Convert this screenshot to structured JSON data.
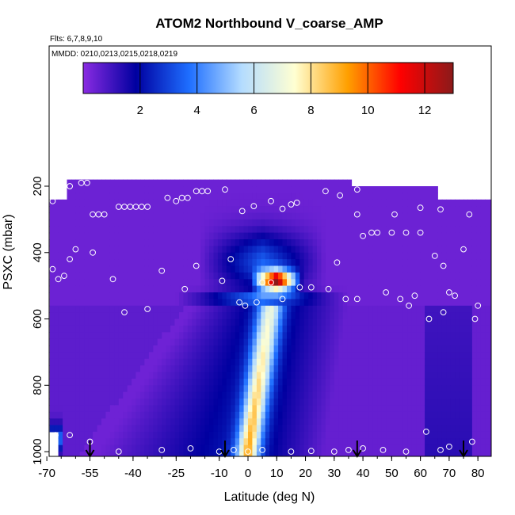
{
  "chart_data": {
    "type": "heatmap",
    "title": "ATOM2 Northbound V_coarse_AMP",
    "flights_label": "Flts: 6,7,8,9,10",
    "dates_label": "MMDD: 0210,0213,0215,0218,0219",
    "xlabel": "Latitude (deg N)",
    "ylabel": "PSXC (mbar)",
    "xlim": [
      -70,
      85
    ],
    "ylim": [
      1020,
      0
    ],
    "x_ticks": [
      -70,
      -55,
      -40,
      -25,
      -10,
      0,
      10,
      20,
      30,
      40,
      50,
      60,
      70,
      80
    ],
    "x_tick_labels": [
      "-70",
      "-55",
      "-40",
      "-25",
      "-10",
      "0",
      "10",
      "20",
      "30",
      "40",
      "50",
      "60",
      "70",
      "80"
    ],
    "y_ticks": [
      200,
      400,
      600,
      800,
      1000
    ],
    "y_tick_labels": [
      "200",
      "400",
      "600",
      "800",
      "1000"
    ],
    "colorbar": {
      "range": [
        0,
        13
      ],
      "ticks": [
        2,
        4,
        6,
        8,
        10,
        12
      ],
      "tick_labels": [
        "2",
        "4",
        "6",
        "8",
        "10",
        "12"
      ],
      "colors": [
        "#8a2be2",
        "#0000a0",
        "#1e6eff",
        "#b4dcff",
        "#ffffd2",
        "#ffa000",
        "#ff0000",
        "#8b1a1a"
      ]
    },
    "arrows_lat": [
      -55,
      -8,
      38,
      75
    ],
    "circles": [
      [
        -68,
        245
      ],
      [
        -65,
        220
      ],
      [
        -62,
        200
      ],
      [
        -58,
        190
      ],
      [
        -56,
        190
      ],
      [
        -54,
        285
      ],
      [
        -52,
        285
      ],
      [
        -50,
        285
      ],
      [
        -45,
        262
      ],
      [
        -43,
        262
      ],
      [
        -41,
        262
      ],
      [
        -39,
        262
      ],
      [
        -37,
        262
      ],
      [
        -35,
        262
      ],
      [
        -28,
        235
      ],
      [
        -25,
        245
      ],
      [
        -23,
        235
      ],
      [
        -21,
        235
      ],
      [
        -18,
        215
      ],
      [
        -16,
        215
      ],
      [
        -14,
        215
      ],
      [
        -8,
        210
      ],
      [
        -2,
        275
      ],
      [
        2,
        260
      ],
      [
        8,
        245
      ],
      [
        12,
        268
      ],
      [
        15,
        255
      ],
      [
        17,
        250
      ],
      [
        27,
        215
      ],
      [
        32,
        228
      ],
      [
        38,
        210
      ],
      [
        -68,
        450
      ],
      [
        -66,
        480
      ],
      [
        -64,
        470
      ],
      [
        -62,
        420
      ],
      [
        -60,
        390
      ],
      [
        -54,
        400
      ],
      [
        -47,
        480
      ],
      [
        -43,
        580
      ],
      [
        -35,
        570
      ],
      [
        -30,
        455
      ],
      [
        -22,
        510
      ],
      [
        -18,
        440
      ],
      [
        -9,
        485
      ],
      [
        -6,
        420
      ],
      [
        -3,
        550
      ],
      [
        -1,
        560
      ],
      [
        3,
        550
      ],
      [
        5,
        490
      ],
      [
        8,
        490
      ],
      [
        12,
        540
      ],
      [
        18,
        505
      ],
      [
        22,
        505
      ],
      [
        28,
        510
      ],
      [
        31,
        430
      ],
      [
        34,
        540
      ],
      [
        38,
        540
      ],
      [
        40,
        350
      ],
      [
        43,
        340
      ],
      [
        45,
        340
      ],
      [
        50,
        340
      ],
      [
        55,
        340
      ],
      [
        60,
        340
      ],
      [
        48,
        520
      ],
      [
        53,
        540
      ],
      [
        56,
        560
      ],
      [
        58,
        530
      ],
      [
        63,
        600
      ],
      [
        68,
        580
      ],
      [
        70,
        520
      ],
      [
        72,
        530
      ],
      [
        65,
        410
      ],
      [
        68,
        440
      ],
      [
        75,
        390
      ],
      [
        77,
        285
      ],
      [
        79,
        600
      ],
      [
        80,
        560
      ],
      [
        -67,
        950
      ],
      [
        -62,
        950
      ],
      [
        -55,
        970
      ],
      [
        -45,
        1000
      ],
      [
        -30,
        995
      ],
      [
        -20,
        990
      ],
      [
        -10,
        1000
      ],
      [
        -5,
        995
      ],
      [
        0,
        1000
      ],
      [
        5,
        995
      ],
      [
        15,
        1000
      ],
      [
        22,
        998
      ],
      [
        30,
        1000
      ],
      [
        35,
        995
      ],
      [
        40,
        990
      ],
      [
        47,
        995
      ],
      [
        55,
        1000
      ],
      [
        62,
        940
      ],
      [
        67,
        995
      ],
      [
        70,
        985
      ],
      [
        78,
        970
      ],
      [
        38,
        285
      ],
      [
        51,
        285
      ],
      [
        60,
        265
      ],
      [
        67,
        270
      ]
    ]
  }
}
